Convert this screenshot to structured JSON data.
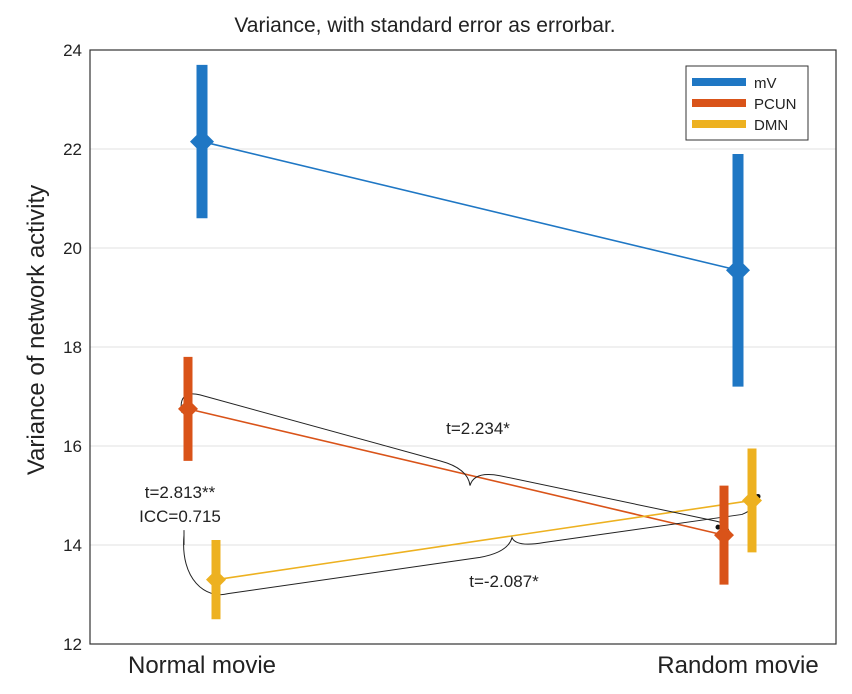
{
  "chart_data": {
    "type": "line",
    "title": "Variance, with standard error as errorbar.",
    "ylabel": "Variance of network activity",
    "xlabel": "",
    "categories": [
      "Normal movie",
      "Random movie"
    ],
    "ylim": [
      12,
      24
    ],
    "yticks": [
      "12",
      "14",
      "16",
      "18",
      "20",
      "22",
      "24"
    ],
    "grid": true,
    "legend_position": "top-right",
    "series": [
      {
        "name": "mV",
        "color": "#1f77c4",
        "values": [
          22.15,
          19.55
        ],
        "errors": [
          1.55,
          2.35
        ]
      },
      {
        "name": "PCUN",
        "color": "#d95319",
        "values": [
          16.75,
          14.2
        ],
        "errors": [
          1.05,
          1.0
        ]
      },
      {
        "name": "DMN",
        "color": "#edb120",
        "values": [
          13.3,
          14.9
        ],
        "errors": [
          0.8,
          1.05
        ]
      }
    ],
    "annotations": {
      "pcun_ttest": "t=2.234*",
      "dmn_ttest": "t=-2.087*",
      "normal_ttest": "t=2.813**",
      "normal_icc": "ICC=0.715"
    }
  }
}
